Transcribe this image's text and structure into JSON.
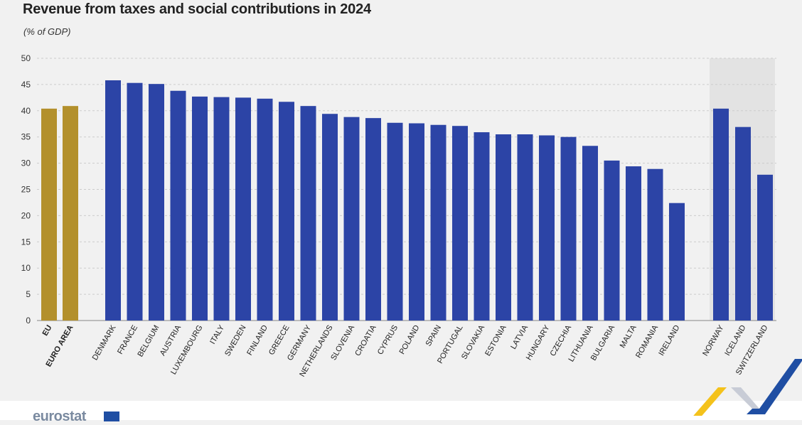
{
  "title": "Revenue from taxes and social contributions in 2024",
  "subtitle": "(% of GDP)",
  "brand": {
    "logo_label": "eurostat"
  },
  "colors": {
    "aggregate": "#b3902c",
    "country": "#2c44a6",
    "efta_background": "#e3e3e3",
    "grid": "#cccccc",
    "background": "#f1f1f1",
    "accent_yellow": "#f4c21b",
    "accent_blue": "#1f4ea3"
  },
  "chart_data": {
    "type": "bar",
    "title": "Revenue from taxes and social contributions in 2024",
    "subtitle": "(% of GDP)",
    "xlabel": "",
    "ylabel": "",
    "ylim": [
      0,
      50
    ],
    "yticks": [
      0,
      5,
      10,
      15,
      20,
      25,
      30,
      35,
      40,
      45,
      50
    ],
    "grid": "horizontal dashed",
    "groups": [
      {
        "group": "aggregates",
        "categories": [
          "EU",
          "EURO AREA"
        ],
        "values": [
          40.4,
          40.9
        ]
      },
      {
        "group": "eu-members",
        "categories": [
          "DENMARK",
          "FRANCE",
          "BELGIUM",
          "AUSTRIA",
          "LUXEMBOURG",
          "ITALY",
          "SWEDEN",
          "FINLAND",
          "GREECE",
          "GERMANY",
          "NETHERLANDS",
          "SLOVENIA",
          "CROATIA",
          "CYPRUS",
          "POLAND",
          "SPAIN",
          "PORTUGAL",
          "SLOVAKIA",
          "ESTONIA",
          "LATVIA",
          "HUNGARY",
          "CZECHIA",
          "LITHUANIA",
          "BULGARIA",
          "MALTA",
          "ROMANIA",
          "IRELAND"
        ],
        "values": [
          45.8,
          45.3,
          45.1,
          43.8,
          42.7,
          42.6,
          42.5,
          42.3,
          41.7,
          40.9,
          39.4,
          38.8,
          38.6,
          37.7,
          37.6,
          37.3,
          37.1,
          35.9,
          35.5,
          35.5,
          35.3,
          35.0,
          33.3,
          30.5,
          29.4,
          28.9,
          22.4
        ]
      },
      {
        "group": "efta",
        "categories": [
          "NORWAY",
          "ICELAND",
          "SWITZERLAND"
        ],
        "values": [
          40.4,
          36.9,
          27.8
        ]
      }
    ]
  }
}
